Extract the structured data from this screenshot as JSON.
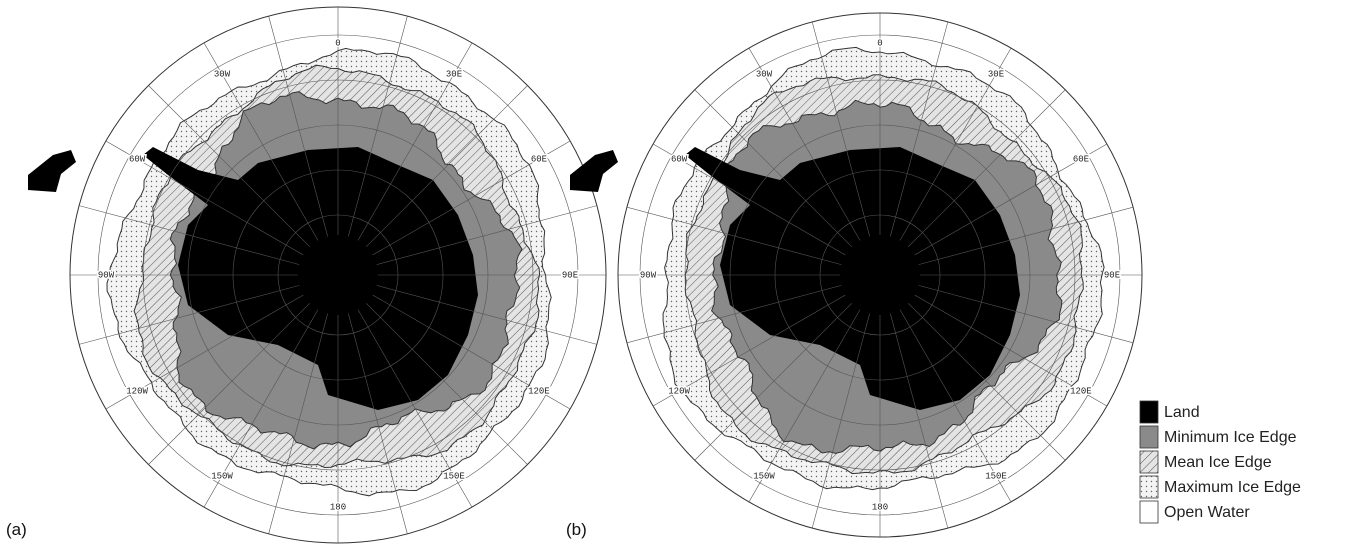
{
  "panels": [
    {
      "label": "(a)",
      "longitudes": [
        "0",
        "30E",
        "60E",
        "90E",
        "120E",
        "150E",
        "180",
        "150W",
        "120W",
        "90W",
        "60W",
        "30W"
      ]
    },
    {
      "label": "(b)",
      "longitudes": [
        "0",
        "30E",
        "60E",
        "90E",
        "120E",
        "150E",
        "180",
        "150W",
        "120W",
        "90W",
        "60W",
        "30W"
      ]
    }
  ],
  "legend": [
    "Land",
    "Minimum Ice Edge",
    "Mean Ice Edge",
    "Maximum Ice Edge",
    "Open Water"
  ]
}
